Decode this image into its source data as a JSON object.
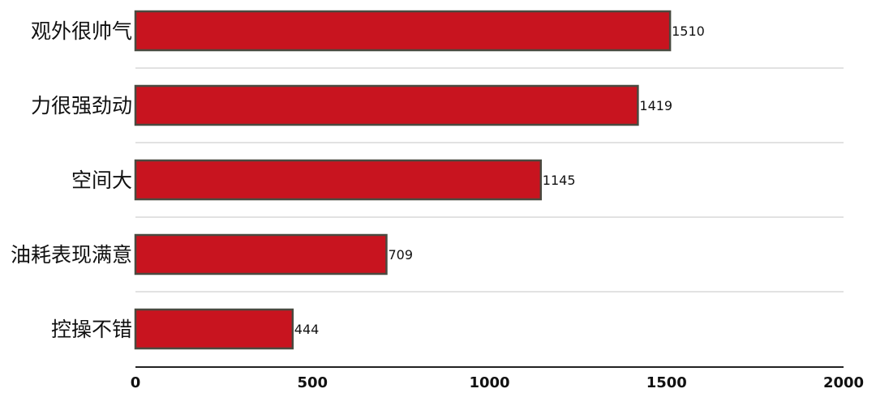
{
  "chart_data": {
    "type": "bar",
    "orientation": "horizontal",
    "categories": [
      "观外很帅气",
      "力很强劲动",
      "空间大",
      "油耗表现满意",
      "控操不错"
    ],
    "values": [
      1510,
      1419,
      1145,
      709,
      444
    ],
    "x_ticks": [
      "0",
      "500",
      "1000",
      "1500",
      "2000"
    ],
    "xlim": [
      0,
      2000
    ],
    "grid": "horizontal separators",
    "legend": "none",
    "data_labels": true,
    "colors": {
      "bar_fill": "#c8141f",
      "bar_stroke": "#4a4a40",
      "axis": "#222222",
      "gridline": "#d9d9d9",
      "text": "#111111"
    }
  }
}
